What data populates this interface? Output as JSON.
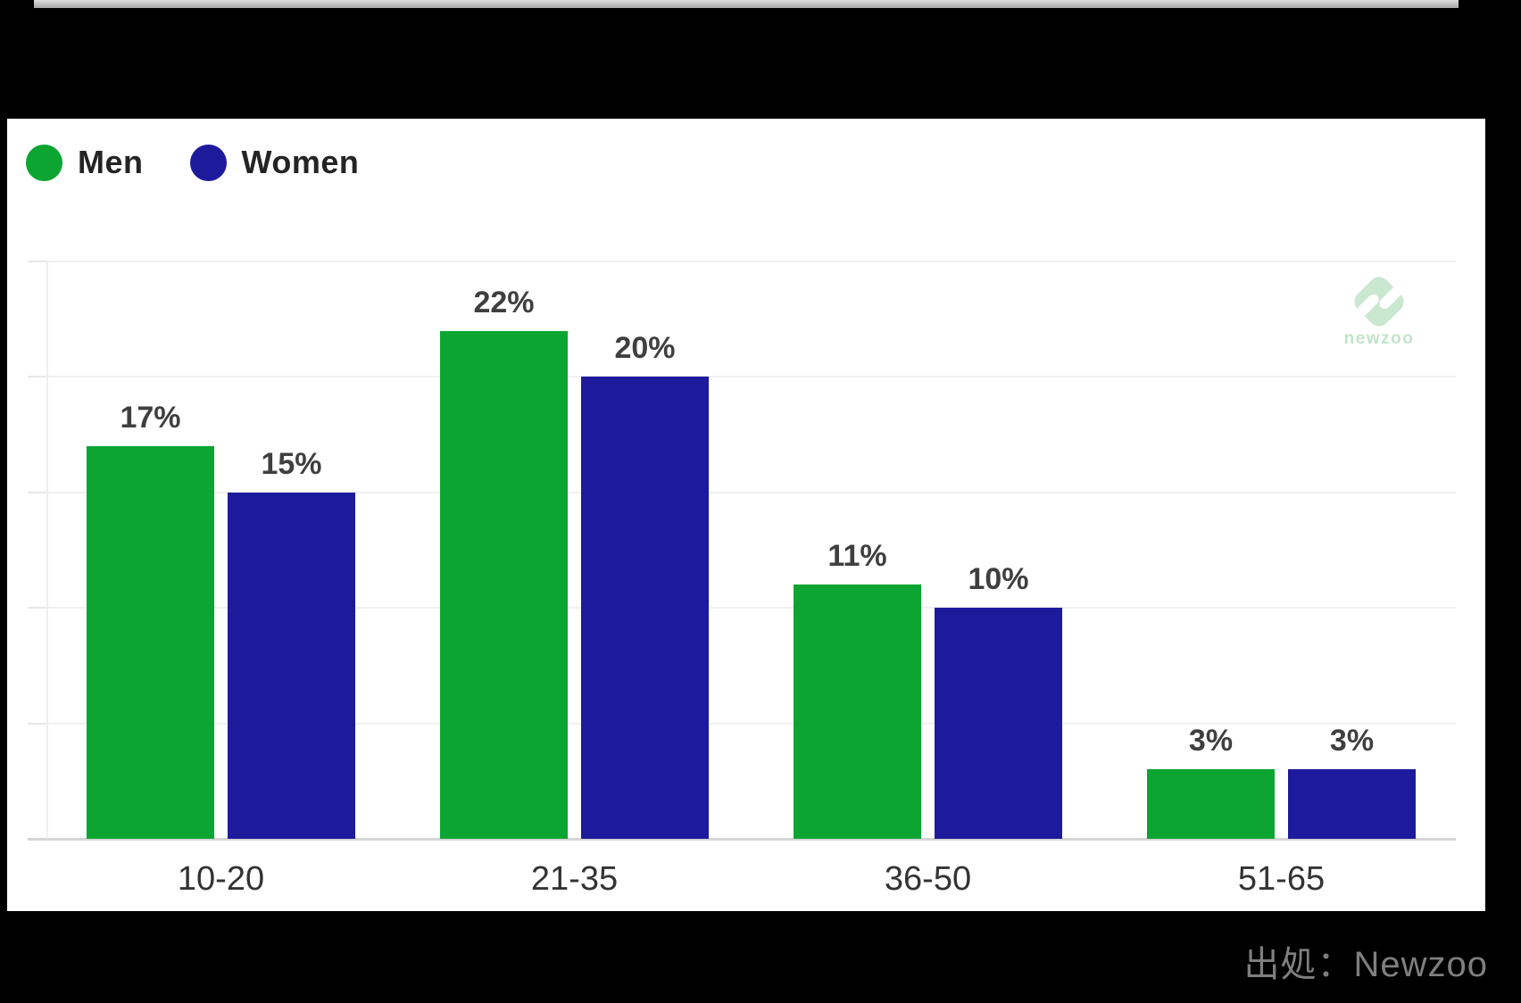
{
  "page": {
    "background": "#000000",
    "source_note": "出処：Newzoo"
  },
  "legend": {
    "items": [
      {
        "label": "Men",
        "color": "#0ca532"
      },
      {
        "label": "Women",
        "color": "#1d1a9c"
      }
    ]
  },
  "watermark": {
    "brand": "newzoo",
    "logo_color": "#9fd4ab"
  },
  "chart_data": {
    "type": "bar",
    "title": "",
    "xlabel": "",
    "ylabel": "",
    "categories": [
      "10-20",
      "21-35",
      "36-50",
      "51-65"
    ],
    "series": [
      {
        "name": "Men",
        "color": "#0ca532",
        "values": [
          17,
          22,
          11,
          3
        ]
      },
      {
        "name": "Women",
        "color": "#1d1a9c",
        "values": [
          15,
          20,
          10,
          3
        ]
      }
    ],
    "value_suffix": "%",
    "data_labels": [
      "17%",
      "22%",
      "11%",
      "3%",
      "15%",
      "20%",
      "10%",
      "3%"
    ],
    "ylim": [
      0,
      25
    ],
    "gridline_step": 5,
    "grid": true,
    "y_tick_labels_visible": false,
    "legend_position": "top-left"
  }
}
